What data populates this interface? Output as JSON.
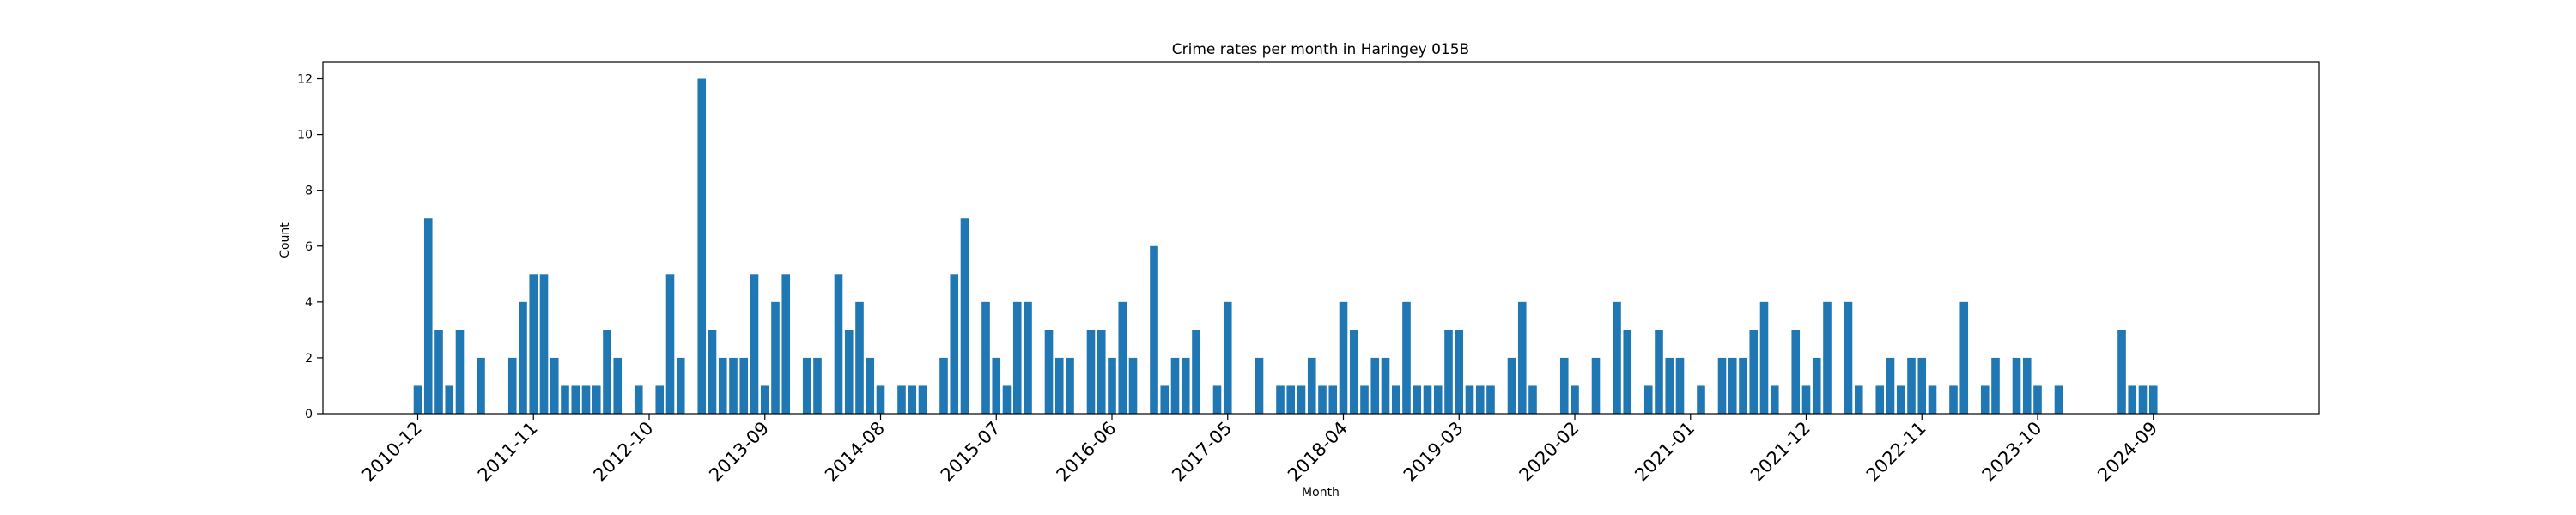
{
  "chart_data": {
    "type": "bar",
    "title": "Crime rates per month in Haringey 015B",
    "xlabel": "Month",
    "ylabel": "Count",
    "ylim": [
      0,
      12.6
    ],
    "yticks": [
      0,
      2,
      4,
      6,
      8,
      10,
      12
    ],
    "xtick_labels": [
      "2010-12",
      "2011-11",
      "2012-10",
      "2013-09",
      "2014-08",
      "2015-07",
      "2016-06",
      "2017-05",
      "2018-04",
      "2019-03",
      "2020-02",
      "2021-01",
      "2021-12",
      "2022-11",
      "2023-10",
      "2024-09"
    ],
    "bar_color": "#1f77b4",
    "grid": false,
    "categories": [
      "2010-12",
      "2011-01",
      "2011-02",
      "2011-03",
      "2011-04",
      "2011-05",
      "2011-06",
      "2011-07",
      "2011-08",
      "2011-09",
      "2011-10",
      "2011-11",
      "2011-12",
      "2012-01",
      "2012-02",
      "2012-03",
      "2012-04",
      "2012-05",
      "2012-06",
      "2012-07",
      "2012-08",
      "2012-09",
      "2012-10",
      "2012-11",
      "2012-12",
      "2013-01",
      "2013-02",
      "2013-03",
      "2013-04",
      "2013-05",
      "2013-06",
      "2013-07",
      "2013-08",
      "2013-09",
      "2013-10",
      "2013-11",
      "2013-12",
      "2014-01",
      "2014-02",
      "2014-03",
      "2014-04",
      "2014-05",
      "2014-06",
      "2014-07",
      "2014-08",
      "2014-09",
      "2014-10",
      "2014-11",
      "2014-12",
      "2015-01",
      "2015-02",
      "2015-03",
      "2015-04",
      "2015-05",
      "2015-06",
      "2015-07",
      "2015-08",
      "2015-09",
      "2015-10",
      "2015-11",
      "2015-12",
      "2016-01",
      "2016-02",
      "2016-03",
      "2016-04",
      "2016-05",
      "2016-06",
      "2016-07",
      "2016-08",
      "2016-09",
      "2016-10",
      "2016-11",
      "2016-12",
      "2017-01",
      "2017-02",
      "2017-03",
      "2017-04",
      "2017-05",
      "2017-06",
      "2017-07",
      "2017-08",
      "2017-09",
      "2017-10",
      "2017-11",
      "2017-12",
      "2018-01",
      "2018-02",
      "2018-03",
      "2018-04",
      "2018-05",
      "2018-06",
      "2018-07",
      "2018-08",
      "2018-09",
      "2018-10",
      "2018-11",
      "2018-12",
      "2019-01",
      "2019-02",
      "2019-03",
      "2019-04",
      "2019-05",
      "2019-06",
      "2019-07",
      "2019-08",
      "2019-09",
      "2019-10",
      "2019-11",
      "2019-12",
      "2020-01",
      "2020-02",
      "2020-03",
      "2020-04",
      "2020-05",
      "2020-06",
      "2020-07",
      "2020-08",
      "2020-09",
      "2020-10",
      "2020-11",
      "2020-12",
      "2021-01",
      "2021-02",
      "2021-03",
      "2021-04",
      "2021-05",
      "2021-06",
      "2021-07",
      "2021-08",
      "2021-09",
      "2021-10",
      "2021-11",
      "2021-12",
      "2022-01",
      "2022-02",
      "2022-03",
      "2022-04",
      "2022-05",
      "2022-06",
      "2022-07",
      "2022-08",
      "2022-09",
      "2022-10",
      "2022-11",
      "2022-12",
      "2023-01",
      "2023-02",
      "2023-03",
      "2023-04",
      "2023-05",
      "2023-06",
      "2023-07",
      "2023-08",
      "2023-09",
      "2023-10",
      "2023-11",
      "2023-12",
      "2024-01",
      "2024-02",
      "2024-03",
      "2024-04",
      "2024-05",
      "2024-06",
      "2024-07",
      "2024-08",
      "2024-09",
      "2024-10",
      "2024-11"
    ],
    "values": [
      1,
      7,
      3,
      1,
      3,
      0,
      2,
      0,
      0,
      2,
      4,
      5,
      5,
      2,
      1,
      1,
      1,
      1,
      3,
      2,
      0,
      1,
      0,
      1,
      5,
      2,
      0,
      12,
      3,
      2,
      2,
      2,
      5,
      1,
      4,
      5,
      0,
      2,
      2,
      0,
      5,
      3,
      4,
      2,
      1,
      0,
      1,
      1,
      1,
      0,
      2,
      5,
      7,
      0,
      4,
      2,
      1,
      4,
      4,
      0,
      3,
      2,
      2,
      0,
      3,
      3,
      2,
      4,
      2,
      0,
      6,
      1,
      2,
      2,
      3,
      0,
      1,
      4,
      0,
      0,
      2,
      0,
      1,
      1,
      1,
      2,
      1,
      1,
      4,
      3,
      1,
      2,
      2,
      1,
      4,
      1,
      1,
      1,
      3,
      3,
      1,
      1,
      1,
      0,
      2,
      4,
      1,
      0,
      0,
      2,
      1,
      0,
      2,
      0,
      4,
      3,
      0,
      1,
      3,
      2,
      2,
      0,
      1,
      0,
      2,
      2,
      2,
      3,
      4,
      1,
      0,
      3,
      1,
      2,
      4,
      0,
      4,
      1,
      0,
      1,
      2,
      1,
      2,
      2,
      1,
      0,
      1,
      4,
      0,
      1,
      2,
      0,
      2,
      2,
      1,
      0,
      1,
      0,
      0,
      0,
      0,
      0,
      3,
      1,
      1,
      1,
      0,
      0
    ]
  }
}
